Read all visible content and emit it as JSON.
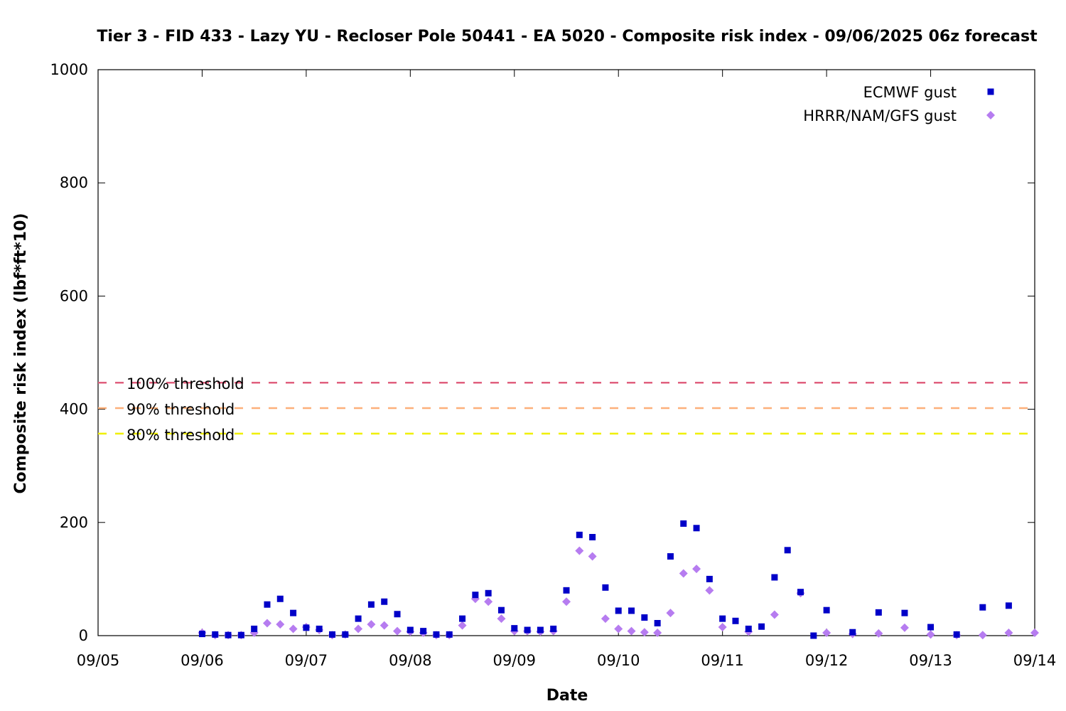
{
  "chart_data": {
    "type": "scatter",
    "title": "Tier 3 - FID 433 - Lazy YU - Recloser Pole 50441 - EA 5020 - Composite risk index - 09/06/2025 06z forecast",
    "xlabel": "Date",
    "ylabel": "Composite risk index (lbf*ft*10)",
    "xlim": [
      "09/05",
      "09/14"
    ],
    "ylim": [
      0,
      1000
    ],
    "x_ticks": [
      "09/05",
      "09/06",
      "09/07",
      "09/08",
      "09/09",
      "09/10",
      "09/11",
      "09/12",
      "09/13",
      "09/14"
    ],
    "y_ticks": [
      "0",
      "200",
      "400",
      "600",
      "800",
      "1000"
    ],
    "legend_position": "top-right",
    "grid": false,
    "thresholds": [
      {
        "label": "100% threshold",
        "value": 447,
        "color": "#e0607e"
      },
      {
        "label": "90% threshold",
        "value": 402,
        "color": "#fdb07a"
      },
      {
        "label": "80% threshold",
        "value": 357,
        "color": "#f0f000"
      }
    ],
    "series": [
      {
        "name": "ECMWF gust",
        "color": "#0000c8",
        "marker": "square",
        "x": [
          "09/06 00z",
          "09/06 03z",
          "09/06 06z",
          "09/06 09z",
          "09/06 12z",
          "09/06 15z",
          "09/06 18z",
          "09/06 21z",
          "09/07 00z",
          "09/07 03z",
          "09/07 06z",
          "09/07 09z",
          "09/07 12z",
          "09/07 15z",
          "09/07 18z",
          "09/07 21z",
          "09/08 00z",
          "09/08 03z",
          "09/08 06z",
          "09/08 09z",
          "09/08 12z",
          "09/08 15z",
          "09/08 18z",
          "09/08 21z",
          "09/09 00z",
          "09/09 03z",
          "09/09 06z",
          "09/09 09z",
          "09/09 12z",
          "09/09 15z",
          "09/09 18z",
          "09/09 21z",
          "09/10 00z",
          "09/10 03z",
          "09/10 06z",
          "09/10 09z",
          "09/10 12z",
          "09/10 15z",
          "09/10 18z",
          "09/10 21z",
          "09/11 00z",
          "09/11 03z",
          "09/11 06z",
          "09/11 09z",
          "09/11 12z",
          "09/11 15z",
          "09/11 18z",
          "09/11 21z",
          "09/12 00z",
          "09/12 06z",
          "09/12 12z",
          "09/12 18z",
          "09/13 00z",
          "09/13 06z",
          "09/13 12z",
          "09/13 18z"
        ],
        "y": [
          3,
          2,
          1,
          1,
          12,
          55,
          65,
          40,
          14,
          12,
          2,
          2,
          30,
          55,
          60,
          38,
          10,
          8,
          2,
          2,
          30,
          72,
          75,
          45,
          13,
          10,
          10,
          12,
          80,
          178,
          174,
          85,
          44,
          44,
          32,
          22,
          140,
          198,
          190,
          100,
          30,
          26,
          12,
          16,
          103,
          151,
          77,
          0,
          45,
          6,
          41,
          40,
          15,
          2,
          50,
          53
        ]
      },
      {
        "name": "HRRR/NAM/GFS gust",
        "color": "#b67cf0",
        "marker": "diamond",
        "x": [
          "09/06 00z",
          "09/06 03z",
          "09/06 06z",
          "09/06 09z",
          "09/06 12z",
          "09/06 15z",
          "09/06 18z",
          "09/06 21z",
          "09/07 00z",
          "09/07 03z",
          "09/07 06z",
          "09/07 09z",
          "09/07 12z",
          "09/07 15z",
          "09/07 18z",
          "09/07 21z",
          "09/08 00z",
          "09/08 03z",
          "09/08 06z",
          "09/08 09z",
          "09/08 12z",
          "09/08 15z",
          "09/08 18z",
          "09/08 21z",
          "09/09 00z",
          "09/09 03z",
          "09/09 06z",
          "09/09 09z",
          "09/09 12z",
          "09/09 15z",
          "09/09 18z",
          "09/09 21z",
          "09/10 00z",
          "09/10 03z",
          "09/10 06z",
          "09/10 09z",
          "09/10 12z",
          "09/10 15z",
          "09/10 18z",
          "09/10 21z",
          "09/11 00z",
          "09/11 06z",
          "09/11 12z",
          "09/11 18z",
          "09/12 00z",
          "09/12 06z",
          "09/12 12z",
          "09/12 18z",
          "09/13 00z",
          "09/13 06z",
          "09/13 12z",
          "09/13 18z",
          "09/14 00z"
        ],
        "y": [
          5,
          1,
          1,
          1,
          5,
          22,
          20,
          12,
          15,
          10,
          1,
          2,
          12,
          20,
          18,
          8,
          7,
          5,
          1,
          1,
          18,
          65,
          60,
          30,
          8,
          8,
          7,
          8,
          60,
          150,
          140,
          30,
          12,
          8,
          6,
          5,
          40,
          110,
          118,
          80,
          15,
          7,
          37,
          75,
          5,
          3,
          4,
          14,
          2,
          1,
          1,
          5,
          5
        ]
      }
    ]
  }
}
